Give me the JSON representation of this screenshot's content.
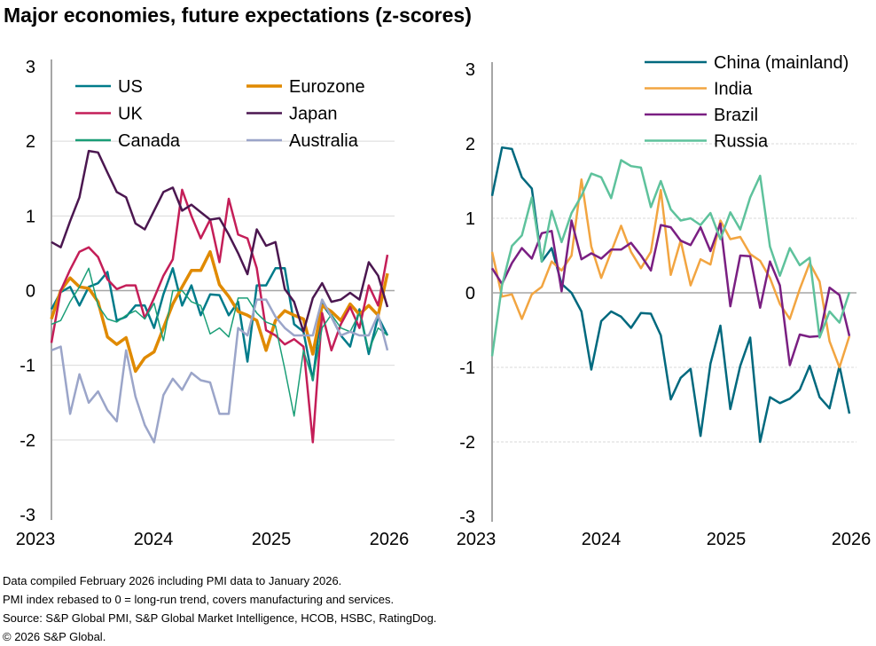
{
  "title": "Major economies, future expectations (z-scores)",
  "footer": [
    "Data compiled February 2026 including PMI data to January 2026.",
    "PMI index rebased to 0 = long-run trend, covers manufacturing and services.",
    "Source: S&P Global PMI, S&P Global Market Intelligence, HCOB, HSBC, RatingDog.",
    "© 2026 S&P Global."
  ],
  "chart_data": [
    {
      "type": "line",
      "title": "",
      "x_start": "2023-01",
      "x_end": "2026-01",
      "frequency": "monthly",
      "x_ticks": [
        "2023",
        "2024",
        "2025",
        "2026"
      ],
      "y_ticks": [
        "3",
        "2",
        "1",
        "0",
        "-1",
        "-2",
        "-3"
      ],
      "ylim": [
        -3,
        3
      ],
      "legend": "top",
      "series": [
        {
          "name": "US",
          "color": "#007b8a",
          "width": 2.5,
          "values": [
            -0.25,
            -0.02,
            0.05,
            -0.2,
            0.05,
            0.1,
            0.25,
            -0.4,
            -0.35,
            -0.2,
            -0.2,
            -0.5,
            -0.05,
            0.3,
            -0.2,
            0.07,
            -0.33,
            -0.05,
            -0.06,
            -0.33,
            -0.15,
            -0.95,
            0.07,
            0.07,
            0.3,
            0.3,
            -0.45,
            -0.55,
            -1.2,
            -0.18,
            -0.35,
            -0.6,
            -0.75,
            -0.25,
            -0.85,
            -0.35,
            -0.6
          ]
        },
        {
          "name": "Eurozone",
          "color": "#e08a00",
          "width": 3.5,
          "values": [
            -0.38,
            0.0,
            0.17,
            0.05,
            0.03,
            -0.15,
            -0.62,
            -0.72,
            -0.63,
            -1.08,
            -0.9,
            -0.82,
            -0.5,
            -0.18,
            0.05,
            0.27,
            0.27,
            0.52,
            0.08,
            -0.08,
            -0.28,
            -0.33,
            -0.4,
            -0.8,
            -0.4,
            -0.27,
            -0.33,
            -0.38,
            -0.85,
            -0.2,
            -0.28,
            -0.4,
            -0.18,
            -0.32,
            -0.2,
            -0.33,
            0.23
          ]
        },
        {
          "name": "UK",
          "color": "#c41e58",
          "width": 2.5,
          "values": [
            -0.7,
            0.0,
            0.28,
            0.52,
            0.58,
            0.45,
            0.15,
            0.02,
            0.07,
            0.07,
            -0.37,
            -0.1,
            0.2,
            0.42,
            1.35,
            1.0,
            0.7,
            0.95,
            0.38,
            1.23,
            0.75,
            0.7,
            0.3,
            -0.53,
            -0.6,
            -0.72,
            -0.65,
            -0.75,
            -2.03,
            -0.3,
            -0.8,
            -0.45,
            -0.22,
            -0.5,
            0.07,
            -0.2,
            0.48
          ]
        },
        {
          "name": "Japan",
          "color": "#4b1750",
          "width": 2.5,
          "values": [
            0.65,
            0.58,
            0.93,
            1.25,
            1.87,
            1.85,
            1.58,
            1.32,
            1.25,
            0.9,
            0.82,
            1.07,
            1.32,
            1.38,
            1.07,
            1.15,
            1.05,
            0.95,
            0.97,
            0.75,
            0.5,
            0.22,
            0.82,
            0.6,
            0.65,
            0.02,
            -0.15,
            -0.55,
            -0.1,
            0.1,
            -0.15,
            -0.12,
            -0.03,
            -0.12,
            0.38,
            0.2,
            -0.22
          ]
        },
        {
          "name": "Canada",
          "color": "#1a9e77",
          "width": 1.5,
          "values": [
            -0.45,
            -0.4,
            -0.15,
            0.05,
            0.3,
            -0.2,
            -0.38,
            -0.42,
            -0.33,
            -0.27,
            -0.38,
            -0.17,
            -0.67,
            0.0,
            0.0,
            -0.15,
            -0.2,
            -0.58,
            -0.5,
            -0.62,
            -0.1,
            -0.1,
            -0.3,
            -0.42,
            -0.47,
            -1.05,
            -1.68,
            -0.8,
            -1.2,
            -0.5,
            -0.32,
            -0.5,
            -0.55,
            -0.3,
            -0.8,
            -0.5,
            -0.6
          ]
        },
        {
          "name": "Australia",
          "color": "#9ba5c9",
          "width": 2.5,
          "values": [
            -0.8,
            -0.75,
            -1.65,
            -1.12,
            -1.5,
            -1.35,
            -1.6,
            -1.75,
            -0.8,
            -1.42,
            -1.8,
            -2.03,
            -1.4,
            -1.18,
            -1.33,
            -1.1,
            -1.2,
            -1.23,
            -1.65,
            -1.65,
            -0.5,
            -0.6,
            -0.12,
            -0.12,
            -0.35,
            -0.5,
            -0.6,
            -0.6,
            -0.6,
            -0.12,
            -0.35,
            -0.6,
            -0.55,
            -0.6,
            -0.6,
            -0.32,
            -0.8
          ]
        }
      ]
    },
    {
      "type": "line",
      "title": "",
      "x_start": "2023-01",
      "x_end": "2026-01",
      "frequency": "monthly",
      "x_ticks": [
        "2023",
        "2024",
        "2025",
        "2026"
      ],
      "y_ticks": [
        "3",
        "2",
        "1",
        "0",
        "-1",
        "-2",
        "-3"
      ],
      "ylim": [
        -3,
        3
      ],
      "legend": "top-right",
      "series": [
        {
          "name": "China (mainland)",
          "color": "#00697e",
          "width": 2.5,
          "values": [
            1.3,
            1.95,
            1.93,
            1.55,
            1.4,
            0.42,
            0.6,
            0.12,
            0.0,
            -0.25,
            -1.03,
            -0.38,
            -0.25,
            -0.32,
            -0.47,
            -0.27,
            -0.28,
            -0.57,
            -1.43,
            -1.14,
            -1.02,
            -1.92,
            -0.95,
            -0.44,
            -1.56,
            -0.98,
            -0.6,
            -2.0,
            -1.4,
            -1.48,
            -1.42,
            -1.3,
            -0.98,
            -1.4,
            -1.55,
            -0.98,
            -1.62
          ]
        },
        {
          "name": "India",
          "color": "#f2a541",
          "width": 2.5,
          "values": [
            0.55,
            -0.05,
            -0.02,
            -0.35,
            -0.02,
            0.08,
            0.42,
            0.3,
            0.5,
            1.52,
            0.62,
            0.2,
            0.55,
            0.9,
            0.55,
            0.33,
            0.55,
            1.38,
            0.24,
            0.7,
            0.1,
            0.45,
            0.38,
            0.97,
            0.72,
            0.75,
            0.52,
            0.43,
            0.2,
            -0.15,
            -0.35,
            0.05,
            0.4,
            0.15,
            -0.65,
            -1.0,
            -0.58
          ]
        },
        {
          "name": "Brazil",
          "color": "#7a1f82",
          "width": 2.5,
          "values": [
            0.33,
            0.12,
            0.4,
            0.6,
            0.46,
            0.8,
            0.83,
            0.02,
            0.97,
            0.45,
            0.53,
            0.46,
            0.58,
            0.58,
            0.67,
            0.5,
            0.3,
            0.91,
            0.88,
            0.7,
            0.64,
            0.88,
            0.56,
            0.93,
            -0.18,
            0.5,
            0.49,
            -0.2,
            0.42,
            0.1,
            -0.97,
            -0.56,
            -0.59,
            -0.58,
            0.07,
            -0.03,
            -0.58
          ]
        },
        {
          "name": "Russia",
          "color": "#5ec29c",
          "width": 2.5,
          "values": [
            -0.85,
            0.1,
            0.63,
            0.77,
            1.28,
            0.42,
            1.1,
            0.68,
            1.07,
            1.3,
            1.6,
            1.55,
            1.27,
            1.78,
            1.7,
            1.68,
            1.15,
            1.5,
            1.12,
            0.97,
            1.0,
            0.91,
            1.07,
            0.72,
            1.08,
            0.85,
            1.28,
            1.57,
            0.62,
            0.23,
            0.6,
            0.37,
            0.47,
            -0.6,
            -0.25,
            -0.4,
            0.01
          ]
        }
      ]
    }
  ]
}
